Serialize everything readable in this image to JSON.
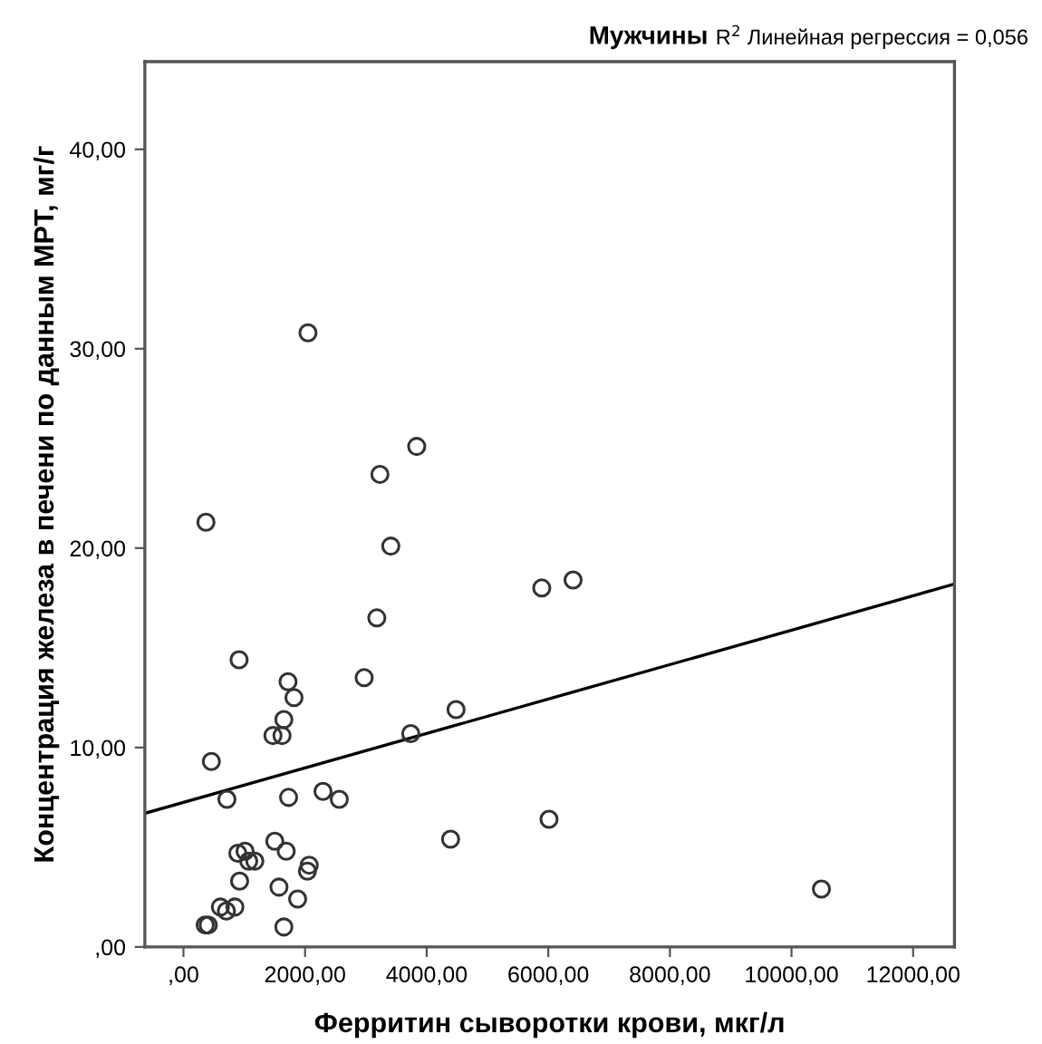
{
  "chart_data": {
    "type": "scatter",
    "title": "Мужчины",
    "annotations": [
      "R$^{2}$ Линейная регрессия = 0,056"
    ],
    "xlabel": "Ферритин сыворотки крови, мкг/л",
    "ylabel": "Концентрация железа в печени по данным МРТ, мг/г",
    "xlim": [
      -635,
      12680
    ],
    "ylim": [
      0,
      44.4
    ],
    "xticks": [
      {
        "value": 0,
        "label": ",00"
      },
      {
        "value": 2000,
        "label": "2000,00"
      },
      {
        "value": 4000,
        "label": "4000,00"
      },
      {
        "value": 6000,
        "label": "6000,00"
      },
      {
        "value": 8000,
        "label": "8000,00"
      },
      {
        "value": 10000,
        "label": "10000,00"
      },
      {
        "value": 12000,
        "label": "12000,00"
      }
    ],
    "yticks": [
      {
        "value": 0,
        "label": ",00"
      },
      {
        "value": 10,
        "label": "10,00"
      },
      {
        "value": 20,
        "label": "20,00"
      },
      {
        "value": 30,
        "label": "30,00"
      },
      {
        "value": 40,
        "label": "40,00"
      }
    ],
    "grid": false,
    "legend": false,
    "series": [
      {
        "type": "scatter",
        "marker": "circle",
        "color": "#333333",
        "x": [
          2048,
          3836,
          3231,
          370,
          3410,
          5893,
          6408,
          3180,
          915,
          1720,
          1818,
          2972,
          4483,
          1651,
          1472,
          1621,
          3738,
          459,
          715,
          1729,
          2295,
          2563,
          6012,
          4393,
          1502,
          1690,
          894,
          1013,
          1073,
          1174,
          2068,
          2039,
          924,
          1571,
          1878,
          608,
          706,
          846,
          358,
          408,
          1651,
          10492
        ],
        "values": [
          30.8,
          25.1,
          23.7,
          21.3,
          20.1,
          18.0,
          18.4,
          16.5,
          14.4,
          13.3,
          12.5,
          13.5,
          11.9,
          11.4,
          10.6,
          10.6,
          10.7,
          9.3,
          7.4,
          7.5,
          7.8,
          7.4,
          6.4,
          5.4,
          5.3,
          4.8,
          4.7,
          4.8,
          4.3,
          4.3,
          4.1,
          3.8,
          3.3,
          3.0,
          2.4,
          2.0,
          1.8,
          2.0,
          1.1,
          1.1,
          1.0,
          2.9
        ]
      },
      {
        "type": "line",
        "marker": "none",
        "line_style": "solid",
        "color": "#000000",
        "x": [
          -635,
          12680
        ],
        "values": [
          6.7,
          18.2
        ]
      }
    ]
  }
}
